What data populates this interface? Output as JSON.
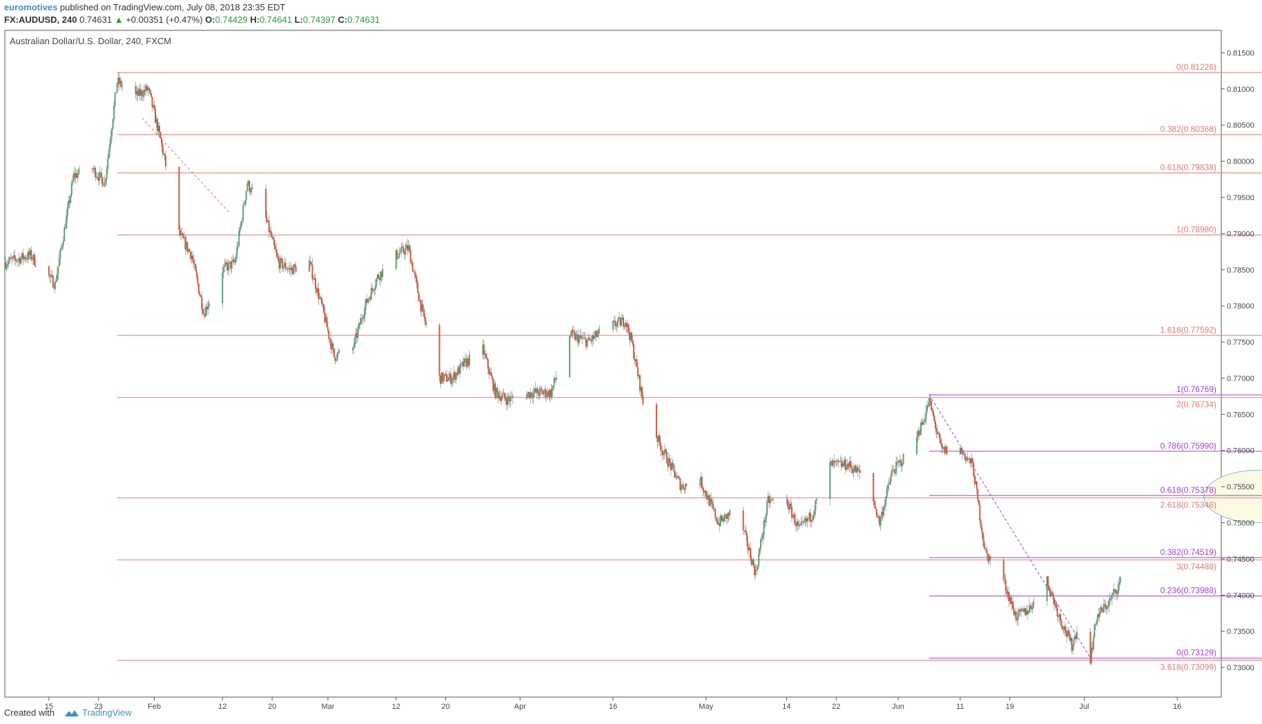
{
  "header": {
    "author": "euromotives",
    "published": " published on TradingView.com, July 08, 2018 23:35 EDT",
    "symbol": "FX:AUDUSD, 240",
    "last": "0.74631",
    "change": "+0.00351 (+0.47%)",
    "o_label": "O:",
    "o_value": "0.74429",
    "h_label": "H:",
    "h_value": "0.74641",
    "l_label": "L:",
    "l_value": "0.74397",
    "c_label": "C:",
    "c_value": "0.74631"
  },
  "footer": {
    "created": "Created with",
    "brand": "TradingView"
  },
  "colors": {
    "up": "#5b9f78",
    "down": "#d4553a",
    "fib_red": "#e07878",
    "fib_purple": "#a23fd6",
    "ellipse_fill": "#fafae2",
    "ellipse_stroke": "#8ab4dc"
  },
  "chart_data": {
    "type": "candlestick",
    "title": "Australian Dollar/U.S. Dollar, 240, FXCM",
    "ylim": [
      0.726,
      0.818
    ],
    "y_ticks": [
      "0.81500",
      "0.81000",
      "0.80500",
      "0.80000",
      "0.79500",
      "0.79000",
      "0.78500",
      "0.78000",
      "0.77500",
      "0.77000",
      "0.76500",
      "0.76000",
      "0.75500",
      "0.75000",
      "0.74500",
      "0.74000",
      "0.73500",
      "0.73000"
    ],
    "x_ticks": [
      {
        "label": "15",
        "date": "2018-01-15"
      },
      {
        "label": "23",
        "date": "2018-01-23"
      },
      {
        "label": "Feb",
        "date": "2018-02-01"
      },
      {
        "label": "12",
        "date": "2018-02-12"
      },
      {
        "label": "20",
        "date": "2018-02-20"
      },
      {
        "label": "Mar",
        "date": "2018-03-01"
      },
      {
        "label": "12",
        "date": "2018-03-12"
      },
      {
        "label": "20",
        "date": "2018-03-20"
      },
      {
        "label": "Apr",
        "date": "2018-04-01"
      },
      {
        "label": "16",
        "date": "2018-04-16"
      },
      {
        "label": "May",
        "date": "2018-05-01"
      },
      {
        "label": "14",
        "date": "2018-05-14"
      },
      {
        "label": "22",
        "date": "2018-05-22"
      },
      {
        "label": "Jun",
        "date": "2018-06-01"
      },
      {
        "label": "11",
        "date": "2018-06-11"
      },
      {
        "label": "19",
        "date": "2018-06-19"
      },
      {
        "label": "Jul",
        "date": "2018-07-01"
      },
      {
        "label": "16",
        "date": "2018-07-16"
      }
    ],
    "price_path": [
      [
        "2018-01-08",
        0.786
      ],
      [
        "2018-01-12",
        0.787
      ],
      [
        "2018-01-16",
        0.783
      ],
      [
        "2018-01-19",
        0.798
      ],
      [
        "2018-01-22",
        0.799
      ],
      [
        "2018-01-24",
        0.797
      ],
      [
        "2018-01-26",
        0.811
      ],
      [
        "2018-01-29",
        0.809
      ],
      [
        "2018-01-31",
        0.81
      ],
      [
        "2018-02-02",
        0.803
      ],
      [
        "2018-02-05",
        0.79
      ],
      [
        "2018-02-07",
        0.787
      ],
      [
        "2018-02-09",
        0.779
      ],
      [
        "2018-02-12",
        0.785
      ],
      [
        "2018-02-14",
        0.786
      ],
      [
        "2018-02-16",
        0.797
      ],
      [
        "2018-02-19",
        0.792
      ],
      [
        "2018-02-21",
        0.786
      ],
      [
        "2018-02-23",
        0.785
      ],
      [
        "2018-02-26",
        0.786
      ],
      [
        "2018-02-28",
        0.78
      ],
      [
        "2018-03-02",
        0.773
      ],
      [
        "2018-03-05",
        0.774
      ],
      [
        "2018-03-07",
        0.78
      ],
      [
        "2018-03-09",
        0.784
      ],
      [
        "2018-03-12",
        0.787
      ],
      [
        "2018-03-14",
        0.788
      ],
      [
        "2018-03-16",
        0.78
      ],
      [
        "2018-03-19",
        0.77
      ],
      [
        "2018-03-21",
        0.77
      ],
      [
        "2018-03-23",
        0.772
      ],
      [
        "2018-03-26",
        0.774
      ],
      [
        "2018-03-28",
        0.768
      ],
      [
        "2018-03-30",
        0.767
      ],
      [
        "2018-04-03",
        0.768
      ],
      [
        "2018-04-06",
        0.768
      ],
      [
        "2018-04-09",
        0.776
      ],
      [
        "2018-04-12",
        0.775
      ],
      [
        "2018-04-15",
        0.777
      ],
      [
        "2018-04-18",
        0.778
      ],
      [
        "2018-04-19",
        0.775
      ],
      [
        "2018-04-21",
        0.766
      ],
      [
        "2018-04-24",
        0.76
      ],
      [
        "2018-04-27",
        0.755
      ],
      [
        "2018-04-30",
        0.756
      ],
      [
        "2018-05-03",
        0.75
      ],
      [
        "2018-05-06",
        0.752
      ],
      [
        "2018-05-09",
        0.743
      ],
      [
        "2018-05-11",
        0.753
      ],
      [
        "2018-05-14",
        0.753
      ],
      [
        "2018-05-16",
        0.749
      ],
      [
        "2018-05-18",
        0.751
      ],
      [
        "2018-05-21",
        0.758
      ],
      [
        "2018-05-24",
        0.758
      ],
      [
        "2018-05-27",
        0.756
      ],
      [
        "2018-05-29",
        0.75
      ],
      [
        "2018-05-31",
        0.757
      ],
      [
        "2018-06-03",
        0.76
      ],
      [
        "2018-06-05",
        0.764
      ],
      [
        "2018-06-06",
        0.7668
      ],
      [
        "2018-06-08",
        0.76
      ],
      [
        "2018-06-11",
        0.76
      ],
      [
        "2018-06-13",
        0.758
      ],
      [
        "2018-06-15",
        0.746
      ],
      [
        "2018-06-18",
        0.742
      ],
      [
        "2018-06-20",
        0.737
      ],
      [
        "2018-06-22",
        0.738
      ],
      [
        "2018-06-25",
        0.742
      ],
      [
        "2018-06-27",
        0.737
      ],
      [
        "2018-06-29",
        0.733
      ],
      [
        "2018-07-01",
        0.738
      ],
      [
        "2018-07-02",
        0.7313
      ],
      [
        "2018-07-03",
        0.737
      ],
      [
        "2018-07-05",
        0.739
      ],
      [
        "2018-07-07",
        0.742
      ],
      [
        "2018-07-08",
        0.7463
      ]
    ],
    "fib_red": {
      "start_date": "2018-01-26",
      "end_date": "2018-07-31",
      "trend": [
        [
          "2018-01-30",
          0.806
        ],
        [
          "2018-02-13",
          0.793
        ]
      ],
      "levels": [
        {
          "label": "0(0.81226)",
          "value": 0.81226
        },
        {
          "label": "0.382(0.80368)",
          "value": 0.80368
        },
        {
          "label": "0.618(0.79838)",
          "value": 0.79838
        },
        {
          "label": "1(0.78980)",
          "value": 0.7898
        },
        {
          "label": "1.618(0.77592)",
          "value": 0.77592
        },
        {
          "label": "2(0.76734)",
          "value": 0.76734
        },
        {
          "label": "2.618(0.75346)",
          "value": 0.75346
        },
        {
          "label": "3(0.74488)",
          "value": 0.74488
        },
        {
          "label": "3.618(0.73099)",
          "value": 0.73099
        }
      ]
    },
    "fib_purple": {
      "start_date": "2018-06-06",
      "end_date": "2018-07-31",
      "trend": [
        [
          "2018-06-06",
          0.7677
        ],
        [
          "2018-07-02",
          0.7313
        ]
      ],
      "levels": [
        {
          "label": "1(0.76769)",
          "value": 0.76769
        },
        {
          "label": "0.786(0.75990)",
          "value": 0.7599
        },
        {
          "label": "0.618(0.75378)",
          "value": 0.75378
        },
        {
          "label": "0.382(0.74519)",
          "value": 0.74519
        },
        {
          "label": "0.236(0.73988)",
          "value": 0.73988
        },
        {
          "label": "0(0.73129)",
          "value": 0.73129
        }
      ]
    },
    "highlight_ellipse": {
      "center_date": "2018-07-29",
      "center_value": 0.75365
    }
  }
}
